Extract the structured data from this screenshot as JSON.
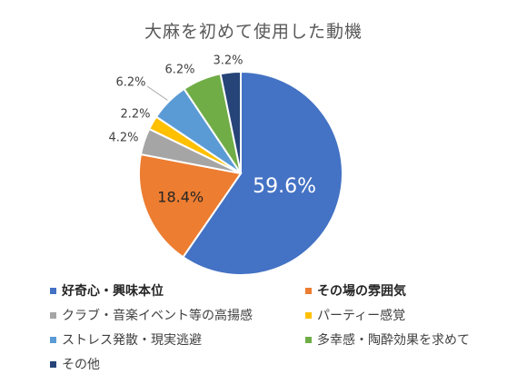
{
  "chart_data": {
    "type": "pie",
    "title": "大麻を初めて使用した動機",
    "slices": [
      {
        "name": "好奇心・興味本位",
        "value": 59.6,
        "label": "59.6%",
        "color": "#4472C4",
        "bold": true
      },
      {
        "name": "その場の雰囲気",
        "value": 18.4,
        "label": "18.4%",
        "color": "#ED7D31",
        "bold": true
      },
      {
        "name": "クラブ・音楽イベント等の高揚感",
        "value": 4.2,
        "label": "4.2%",
        "color": "#A5A5A5",
        "bold": false
      },
      {
        "name": "パーティー感覚",
        "value": 2.2,
        "label": "2.2%",
        "color": "#FFC000",
        "bold": false
      },
      {
        "name": "ストレス発散・現実逃避",
        "value": 6.2,
        "label": "6.2%",
        "color": "#5B9BD5",
        "bold": false
      },
      {
        "name": "多幸感・陶酔効果を求めて",
        "value": 6.2,
        "label": "6.2%",
        "color": "#70AD47",
        "bold": false
      },
      {
        "name": "その他",
        "value": 3.2,
        "label": "3.2%",
        "color": "#264478",
        "bold": false
      }
    ],
    "legend_position": "bottom"
  }
}
